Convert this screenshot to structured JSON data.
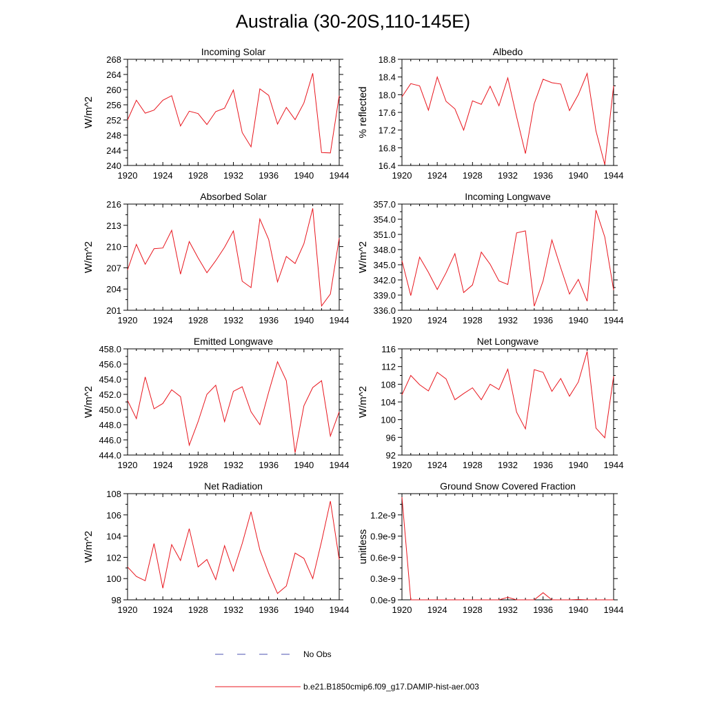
{
  "figure": {
    "title": "Australia (30-20S,110-145E)",
    "series_color": "#e8141c",
    "obs_color": "#4a50b0"
  },
  "legend": {
    "obs_label": "No Obs",
    "model_label": "b.e21.B1850cmip6.f09_g17.DAMIP-hist-aer.003"
  },
  "chart_data": [
    {
      "type": "line",
      "title": "Incoming Solar",
      "ylabel": "W/m^2",
      "xlim": [
        1920,
        1944
      ],
      "ylim": [
        240,
        268
      ],
      "xticks": [
        1920,
        1924,
        1928,
        1932,
        1936,
        1940,
        1944
      ],
      "yticks": [
        240,
        244,
        248,
        252,
        256,
        260,
        264,
        268
      ],
      "ytick_labels": [
        "240",
        "244",
        "248",
        "252",
        "256",
        "260",
        "264",
        "268"
      ],
      "x": [
        1920,
        1921,
        1922,
        1923,
        1924,
        1925,
        1926,
        1927,
        1928,
        1929,
        1930,
        1931,
        1932,
        1933,
        1934,
        1935,
        1936,
        1937,
        1938,
        1939,
        1940,
        1941,
        1942,
        1943,
        1944
      ],
      "series": [
        {
          "values": [
            252.0,
            257.2,
            253.8,
            254.6,
            257.2,
            258.4,
            250.4,
            254.3,
            253.7,
            250.8,
            254.2,
            255.1,
            259.9,
            248.7,
            244.9,
            260.2,
            258.5,
            250.9,
            255.3,
            252.1,
            256.5,
            264.3,
            243.4,
            243.3,
            258.4
          ]
        }
      ]
    },
    {
      "type": "line",
      "title": "Albedo",
      "ylabel": "% reflected",
      "xlim": [
        1920,
        1944
      ],
      "ylim": [
        16.4,
        18.8
      ],
      "xticks": [
        1920,
        1924,
        1928,
        1932,
        1936,
        1940,
        1944
      ],
      "yticks": [
        16.4,
        16.8,
        17.2,
        17.6,
        18.0,
        18.4,
        18.8
      ],
      "ytick_labels": [
        "16.4",
        "16.8",
        "17.2",
        "17.6",
        "18.0",
        "18.4",
        "18.8"
      ],
      "x": [
        1920,
        1921,
        1922,
        1923,
        1924,
        1925,
        1926,
        1927,
        1928,
        1929,
        1930,
        1931,
        1932,
        1933,
        1934,
        1935,
        1936,
        1937,
        1938,
        1939,
        1940,
        1941,
        1942,
        1943,
        1944
      ],
      "series": [
        {
          "values": [
            17.95,
            18.25,
            18.2,
            17.65,
            18.4,
            17.85,
            17.68,
            17.2,
            17.86,
            17.78,
            18.19,
            17.75,
            18.38,
            17.5,
            16.67,
            17.8,
            18.35,
            18.27,
            18.24,
            17.64,
            18.0,
            18.48,
            17.18,
            16.42,
            18.2
          ]
        }
      ]
    },
    {
      "type": "line",
      "title": "Absorbed Solar",
      "ylabel": "W/m^2",
      "xlim": [
        1920,
        1944
      ],
      "ylim": [
        201,
        216
      ],
      "xticks": [
        1920,
        1924,
        1928,
        1932,
        1936,
        1940,
        1944
      ],
      "yticks": [
        201,
        204,
        207,
        210,
        213,
        216
      ],
      "ytick_labels": [
        "201",
        "204",
        "207",
        "210",
        "213",
        "216"
      ],
      "x": [
        1920,
        1921,
        1922,
        1923,
        1924,
        1925,
        1926,
        1927,
        1928,
        1929,
        1930,
        1931,
        1932,
        1933,
        1934,
        1935,
        1936,
        1937,
        1938,
        1939,
        1940,
        1941,
        1942,
        1943,
        1944
      ],
      "series": [
        {
          "values": [
            206.7,
            210.3,
            207.5,
            209.7,
            209.8,
            212.3,
            206.1,
            210.7,
            208.4,
            206.3,
            208.0,
            209.9,
            212.2,
            205.1,
            204.2,
            213.9,
            211.0,
            205.0,
            208.6,
            207.6,
            210.4,
            215.4,
            201.6,
            203.3,
            211.2
          ]
        }
      ]
    },
    {
      "type": "line",
      "title": "Incoming Longwave",
      "ylabel": "W/m^2",
      "xlim": [
        1920,
        1944
      ],
      "ylim": [
        336.0,
        357.0
      ],
      "xticks": [
        1920,
        1924,
        1928,
        1932,
        1936,
        1940,
        1944
      ],
      "yticks": [
        336,
        339,
        342,
        345,
        348,
        351,
        354,
        357
      ],
      "ytick_labels": [
        "336.0",
        "339.0",
        "342.0",
        "345.0",
        "348.0",
        "351.0",
        "354.0",
        "357.0"
      ],
      "x": [
        1920,
        1921,
        1922,
        1923,
        1924,
        1925,
        1926,
        1927,
        1928,
        1929,
        1930,
        1931,
        1932,
        1933,
        1934,
        1935,
        1936,
        1937,
        1938,
        1939,
        1940,
        1941,
        1942,
        1943,
        1944
      ],
      "series": [
        {
          "values": [
            345.8,
            338.9,
            346.5,
            343.5,
            340.1,
            343.4,
            347.2,
            339.5,
            341.0,
            347.5,
            345.1,
            341.8,
            341.1,
            351.3,
            351.7,
            336.8,
            341.8,
            349.9,
            344.4,
            339.2,
            342.1,
            337.8,
            355.8,
            350.5,
            340.0
          ]
        }
      ]
    },
    {
      "type": "line",
      "title": "Emitted Longwave",
      "ylabel": "W/m^2",
      "xlim": [
        1920,
        1944
      ],
      "ylim": [
        444.0,
        458.0
      ],
      "xticks": [
        1920,
        1924,
        1928,
        1932,
        1936,
        1940,
        1944
      ],
      "yticks": [
        444,
        446,
        448,
        450,
        452,
        454,
        456,
        458
      ],
      "ytick_labels": [
        "444.0",
        "446.0",
        "448.0",
        "450.0",
        "452.0",
        "454.0",
        "456.0",
        "458.0"
      ],
      "x": [
        1920,
        1921,
        1922,
        1923,
        1924,
        1925,
        1926,
        1927,
        1928,
        1929,
        1930,
        1931,
        1932,
        1933,
        1934,
        1935,
        1936,
        1937,
        1938,
        1939,
        1940,
        1941,
        1942,
        1943,
        1944
      ],
      "series": [
        {
          "values": [
            451.2,
            448.8,
            454.3,
            450.1,
            450.8,
            452.6,
            451.7,
            445.3,
            448.4,
            452.0,
            453.2,
            448.4,
            452.4,
            453.0,
            449.7,
            448.0,
            452.3,
            456.3,
            453.8,
            444.3,
            450.5,
            452.9,
            453.8,
            446.5,
            449.7
          ]
        }
      ]
    },
    {
      "type": "line",
      "title": "Net Longwave",
      "ylabel": "W/m^2",
      "xlim": [
        1920,
        1944
      ],
      "ylim": [
        92,
        116
      ],
      "xticks": [
        1920,
        1924,
        1928,
        1932,
        1936,
        1940,
        1944
      ],
      "yticks": [
        92,
        96,
        100,
        104,
        108,
        112,
        116
      ],
      "ytick_labels": [
        "92",
        "96",
        "100",
        "104",
        "108",
        "112",
        "116"
      ],
      "x": [
        1920,
        1921,
        1922,
        1923,
        1924,
        1925,
        1926,
        1927,
        1928,
        1929,
        1930,
        1931,
        1932,
        1933,
        1934,
        1935,
        1936,
        1937,
        1938,
        1939,
        1940,
        1941,
        1942,
        1943,
        1944
      ],
      "series": [
        {
          "values": [
            105.6,
            110.0,
            107.9,
            106.5,
            110.7,
            109.2,
            104.5,
            105.9,
            107.2,
            104.5,
            108.0,
            106.8,
            111.4,
            101.7,
            97.9,
            111.3,
            110.7,
            106.4,
            109.3,
            105.3,
            108.5,
            115.4,
            98.1,
            95.9,
            109.8
          ]
        }
      ]
    },
    {
      "type": "line",
      "title": "Net Radiation",
      "ylabel": "W/m^2",
      "xlim": [
        1920,
        1944
      ],
      "ylim": [
        98,
        108
      ],
      "xticks": [
        1920,
        1924,
        1928,
        1932,
        1936,
        1940,
        1944
      ],
      "yticks": [
        98,
        100,
        102,
        104,
        106,
        108
      ],
      "ytick_labels": [
        "98",
        "100",
        "102",
        "104",
        "106",
        "108"
      ],
      "x": [
        1920,
        1921,
        1922,
        1923,
        1924,
        1925,
        1926,
        1927,
        1928,
        1929,
        1930,
        1931,
        1932,
        1933,
        1934,
        1935,
        1936,
        1937,
        1938,
        1939,
        1940,
        1941,
        1942,
        1943,
        1944
      ],
      "series": [
        {
          "values": [
            101.1,
            100.2,
            99.8,
            103.3,
            99.1,
            103.2,
            101.7,
            104.7,
            101.1,
            101.8,
            99.9,
            103.1,
            100.7,
            103.3,
            106.3,
            102.7,
            100.5,
            98.6,
            99.3,
            102.4,
            101.9,
            100.0,
            103.5,
            107.3,
            101.8
          ]
        }
      ]
    },
    {
      "type": "line",
      "title": "Ground Snow Covered Fraction",
      "ylabel": "unitless",
      "xlim": [
        1920,
        1944
      ],
      "ylim": [
        0.0,
        1.5
      ],
      "xticks": [
        1920,
        1924,
        1928,
        1932,
        1936,
        1940,
        1944
      ],
      "yticks": [
        0.0,
        0.3,
        0.6,
        0.9,
        1.2
      ],
      "ytick_labels": [
        "0.0e-9",
        "0.3e-9",
        "0.6e-9",
        "0.9e-9",
        "1.2e-9"
      ],
      "x": [
        1920,
        1921,
        1922,
        1923,
        1924,
        1925,
        1926,
        1927,
        1928,
        1929,
        1930,
        1931,
        1932,
        1933,
        1934,
        1935,
        1936,
        1937,
        1938,
        1939,
        1940,
        1941,
        1942,
        1943,
        1944
      ],
      "series": [
        {
          "values": [
            1.45,
            0.0,
            0.0,
            0.0,
            0.0,
            0.0,
            0.0,
            0.0,
            0.0,
            0.0,
            0.0,
            0.0,
            0.035,
            0.0,
            0.0,
            0.0,
            0.1,
            0.0,
            0.0,
            0.0,
            0.005,
            0.0,
            0.0,
            0.0,
            0.0
          ]
        }
      ]
    }
  ]
}
